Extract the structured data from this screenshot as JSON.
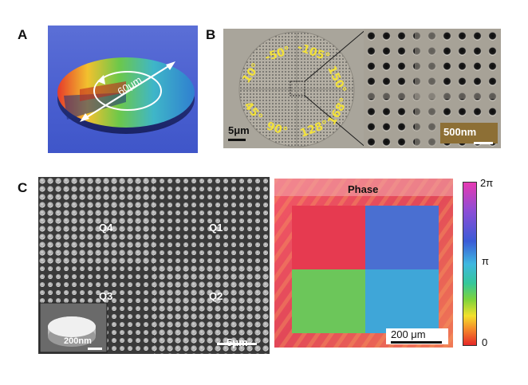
{
  "panels": {
    "a": {
      "letter": "A",
      "dimension_label": "60μm"
    },
    "b": {
      "letter": "B",
      "angles": [
        "10°",
        "-50°",
        "-105°",
        "150°",
        "168°",
        "128°",
        "90°",
        "45°"
      ],
      "scale_left": "5μm",
      "scale_right": "500nm"
    },
    "c": {
      "letter": "C",
      "quadrants": [
        "Q4",
        "Q1",
        "Q3",
        "Q2"
      ],
      "scale_sem": "5μm",
      "inset_scale": "200nm",
      "phase_title": "Phase",
      "phase_scale": "200 μm",
      "colorbar_ticks": [
        "2π",
        "π",
        "0"
      ]
    }
  }
}
